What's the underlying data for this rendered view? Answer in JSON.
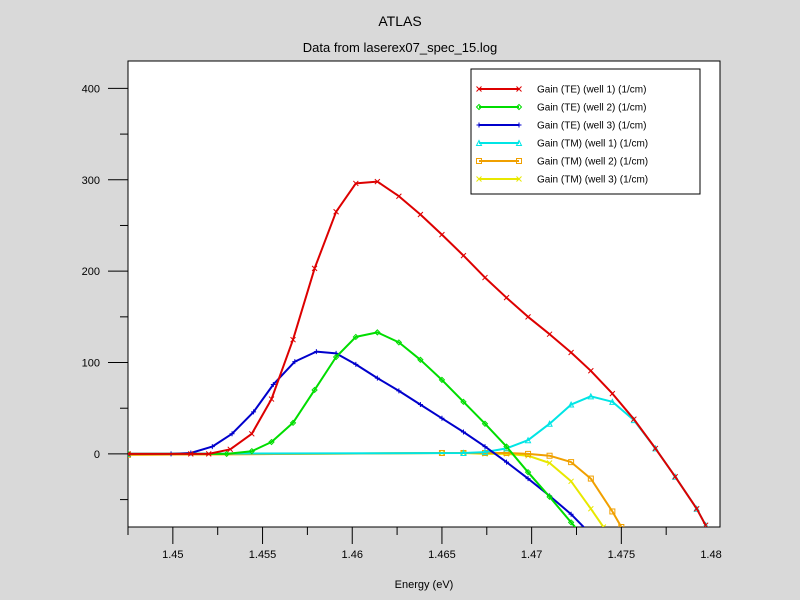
{
  "chart_data": {
    "type": "line",
    "title": "ATLAS",
    "subtitle": "Data from laserex07_spec_15.log",
    "xlabel": "Energy (eV)",
    "ylabel": "",
    "xlim": [
      1.4475,
      1.4805
    ],
    "ylim": [
      -80,
      430
    ],
    "x_ticks": [
      1.45,
      1.455,
      1.46,
      1.465,
      1.47,
      1.475,
      1.48
    ],
    "x_tick_labels": [
      "1.45",
      "1.455",
      "1.46",
      "1.465",
      "1.47",
      "1.475",
      "1.48"
    ],
    "y_ticks": [
      0,
      100,
      200,
      300,
      400
    ],
    "y_tick_labels": [
      "0",
      "100",
      "200",
      "300",
      "400"
    ],
    "grid": false,
    "legend_position": "top-right",
    "series": [
      {
        "name": "Gain (TE) (well 1) (1/cm)",
        "color": "#dd0000",
        "marker": "x",
        "x": [
          1.4475,
          1.451,
          1.452,
          1.4532,
          1.4544,
          1.4555,
          1.4567,
          1.4579,
          1.4591,
          1.4602,
          1.4614,
          1.4626,
          1.4638,
          1.465,
          1.4662,
          1.4674,
          1.4686,
          1.4698,
          1.471,
          1.4722,
          1.4733,
          1.4745,
          1.4757,
          1.4769,
          1.478,
          1.4792,
          1.4797
        ],
        "y": [
          0,
          0,
          0,
          5,
          22,
          60,
          125,
          203,
          265,
          296,
          298,
          282,
          262,
          240,
          217,
          193,
          171,
          150,
          131,
          111,
          91,
          66,
          38,
          6,
          -25,
          -60,
          -78
        ]
      },
      {
        "name": "Gain (TE) (well 2) (1/cm)",
        "color": "#00dd00",
        "marker": "diamond",
        "x": [
          1.4475,
          1.453,
          1.4544,
          1.4555,
          1.4567,
          1.4579,
          1.4591,
          1.4602,
          1.4614,
          1.4626,
          1.4638,
          1.465,
          1.4662,
          1.4674,
          1.4686,
          1.4698,
          1.471,
          1.4722,
          1.4733
        ],
        "y": [
          0,
          0,
          3,
          13,
          34,
          70,
          106,
          128,
          133,
          122,
          103,
          81,
          57,
          33,
          8,
          -20,
          -47,
          -75,
          -100
        ]
      },
      {
        "name": "Gain (TE) (well 3) (1/cm)",
        "color": "#0000cc",
        "marker": "plus",
        "x": [
          1.4475,
          1.4499,
          1.451,
          1.4522,
          1.4533,
          1.4545,
          1.4556,
          1.4568,
          1.458,
          1.4591,
          1.4602,
          1.4614,
          1.4626,
          1.4638,
          1.465,
          1.4662,
          1.4674,
          1.4686,
          1.4698,
          1.471,
          1.4722,
          1.4733
        ],
        "y": [
          0,
          0,
          1,
          8,
          22,
          46,
          76,
          101,
          112,
          110,
          98,
          83,
          69,
          54,
          39,
          24,
          8,
          -9,
          -27,
          -46,
          -66,
          -88
        ]
      },
      {
        "name": "Gain (TM) (well 1) (1/cm)",
        "color": "#00e5e5",
        "marker": "triangle",
        "x": [
          1.4475,
          1.4662,
          1.4674,
          1.4686,
          1.4698,
          1.471,
          1.4722,
          1.4733,
          1.4745,
          1.4757,
          1.4769,
          1.478,
          1.4792,
          1.4797
        ],
        "y": [
          0,
          1,
          2,
          6,
          15,
          33,
          54,
          63,
          57,
          37,
          6,
          -25,
          -60,
          -78
        ]
      },
      {
        "name": "Gain (TM) (well 2) (1/cm)",
        "color": "#f0a000",
        "marker": "square",
        "x": [
          1.4475,
          1.465,
          1.4662,
          1.4674,
          1.4686,
          1.4698,
          1.471,
          1.4722,
          1.4733,
          1.4745,
          1.475
        ],
        "y": [
          -1,
          1,
          1,
          1,
          1,
          0,
          -2,
          -9,
          -27,
          -63,
          -80
        ]
      },
      {
        "name": "Gain (TM) (well 3) (1/cm)",
        "color": "#e8e800",
        "marker": "x",
        "x": [
          1.4475,
          1.465,
          1.4662,
          1.4674,
          1.4686,
          1.4698,
          1.471,
          1.4722,
          1.4733,
          1.474
        ],
        "y": [
          -1,
          1,
          1,
          0,
          0,
          -2,
          -10,
          -30,
          -60,
          -80
        ]
      }
    ]
  }
}
